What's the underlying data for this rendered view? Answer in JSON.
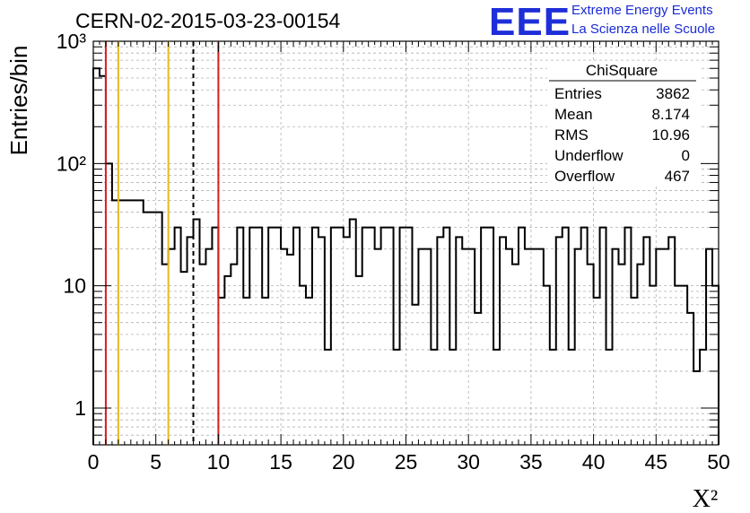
{
  "header": {
    "run_title": "CERN-02-2015-03-23-00154",
    "logo_text": "EEE",
    "logo_line1": "Extreme Energy Events",
    "logo_line2": "La Scienza nelle Scuole"
  },
  "stats": {
    "title": "ChiSquare",
    "rows": [
      {
        "label": "Entries",
        "value": "3862"
      },
      {
        "label": "Mean",
        "value": "8.174"
      },
      {
        "label": "RMS",
        "value": "10.96"
      },
      {
        "label": "Underflow",
        "value": "0"
      },
      {
        "label": "Overflow",
        "value": "467"
      }
    ]
  },
  "chart_data": {
    "type": "histogram",
    "title": "CERN-02-2015-03-23-00154",
    "xlabel": "X²",
    "ylabel": "Entries/bin",
    "xlim": [
      0,
      50
    ],
    "ylim": [
      0.5,
      1000
    ],
    "yscale": "log",
    "grid": true,
    "x_ticks": [
      "0",
      "5",
      "10",
      "15",
      "20",
      "25",
      "30",
      "35",
      "40",
      "45",
      "50"
    ],
    "y_ticks": [
      {
        "value": 1,
        "label": "1"
      },
      {
        "value": 10,
        "label": "10"
      },
      {
        "value": 100,
        "label": "10²"
      },
      {
        "value": 1000,
        "label": "10³"
      }
    ],
    "bin_width": 0.5,
    "values": [
      600,
      520,
      100,
      50,
      50,
      50,
      50,
      50,
      40,
      40,
      40,
      15,
      20,
      30,
      13,
      25,
      35,
      15,
      20,
      30,
      8,
      12,
      15,
      30,
      8,
      30,
      30,
      8,
      30,
      30,
      20,
      18,
      30,
      10,
      8,
      30,
      25,
      3,
      30,
      30,
      25,
      35,
      12,
      30,
      30,
      20,
      30,
      30,
      3,
      30,
      30,
      7,
      20,
      20,
      3,
      25,
      30,
      3,
      25,
      20,
      20,
      6,
      30,
      30,
      3,
      25,
      20,
      15,
      30,
      20,
      20,
      20,
      10,
      3,
      25,
      30,
      3,
      20,
      30,
      15,
      8,
      30,
      3,
      20,
      15,
      30,
      8,
      15,
      25,
      10,
      20,
      20,
      25,
      10,
      10,
      6,
      2,
      3,
      20,
      10
    ],
    "vertical_lines": [
      {
        "x": 1,
        "color": "#d61f1f",
        "style": "solid"
      },
      {
        "x": 2,
        "color": "#e8b820",
        "style": "solid"
      },
      {
        "x": 6,
        "color": "#e8b820",
        "style": "solid"
      },
      {
        "x": 8,
        "color": "#000000",
        "style": "dashed"
      },
      {
        "x": 10,
        "color": "#d61f1f",
        "style": "solid"
      }
    ]
  }
}
